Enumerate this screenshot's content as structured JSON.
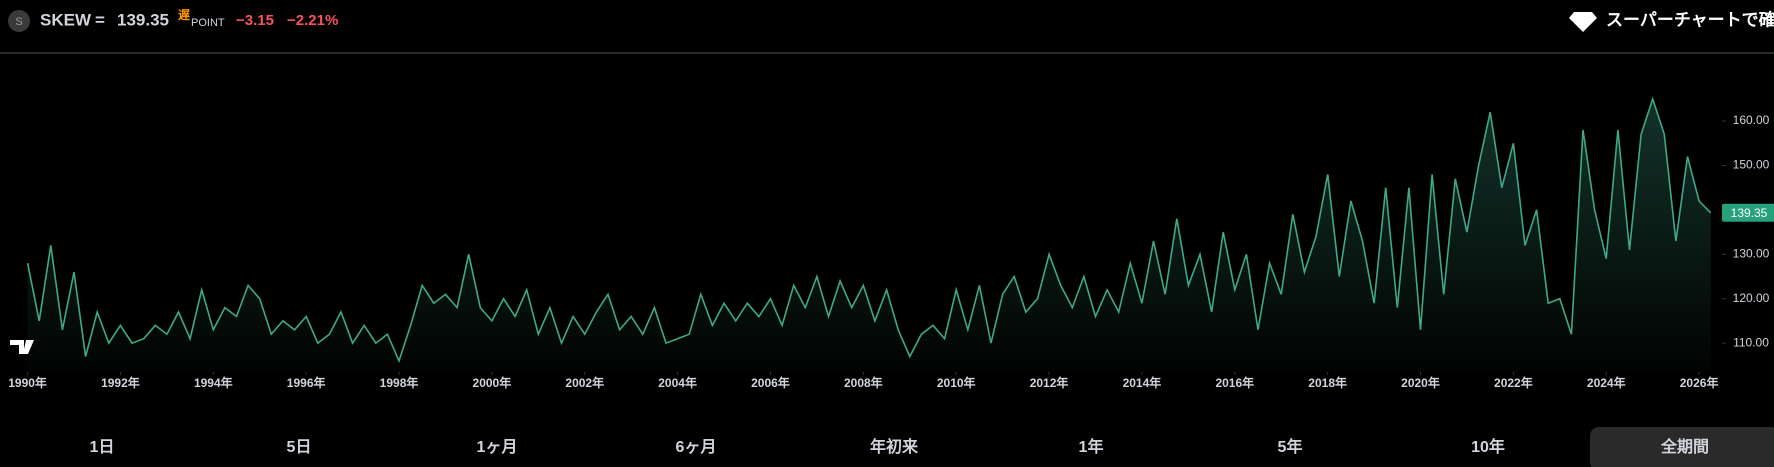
{
  "header": {
    "icon": "S",
    "symbol": "SKEW",
    "separator": "=",
    "price": "139.35",
    "delay": "遅",
    "unit": "POINT",
    "change": "−3.15",
    "change_pct": "−2.21%",
    "supercharts": "スーパーチャートで確認"
  },
  "ranges": [
    "1日",
    "5日",
    "1ヶ月",
    "6ヶ月",
    "年初来",
    "1年",
    "5年",
    "10年",
    "全期間"
  ],
  "chart_data": {
    "type": "line",
    "color": "#3fa88a",
    "area": true,
    "x": [
      1990,
      1990.25,
      1990.5,
      1990.75,
      1991,
      1991.25,
      1991.5,
      1991.75,
      1992,
      1992.25,
      1992.5,
      1992.75,
      1993,
      1993.25,
      1993.5,
      1993.75,
      1994,
      1994.25,
      1994.5,
      1994.75,
      1995,
      1995.25,
      1995.5,
      1995.75,
      1996,
      1996.25,
      1996.5,
      1996.75,
      1997,
      1997.25,
      1997.5,
      1997.75,
      1998,
      1998.25,
      1998.5,
      1998.75,
      1999,
      1999.25,
      1999.5,
      1999.75,
      2000,
      2000.25,
      2000.5,
      2000.75,
      2001,
      2001.25,
      2001.5,
      2001.75,
      2002,
      2002.25,
      2002.5,
      2002.75,
      2003,
      2003.25,
      2003.5,
      2003.75,
      2004,
      2004.25,
      2004.5,
      2004.75,
      2005,
      2005.25,
      2005.5,
      2005.75,
      2006,
      2006.25,
      2006.5,
      2006.75,
      2007,
      2007.25,
      2007.5,
      2007.75,
      2008,
      2008.25,
      2008.5,
      2008.75,
      2009,
      2009.25,
      2009.5,
      2009.75,
      2010,
      2010.25,
      2010.5,
      2010.75,
      2011,
      2011.25,
      2011.5,
      2011.75,
      2012,
      2012.25,
      2012.5,
      2012.75,
      2013,
      2013.25,
      2013.5,
      2013.75,
      2014,
      2014.25,
      2014.5,
      2014.75,
      2015,
      2015.25,
      2015.5,
      2015.75,
      2016,
      2016.25,
      2016.5,
      2016.75,
      2017,
      2017.25,
      2017.5,
      2017.75,
      2018,
      2018.25,
      2018.5,
      2018.75,
      2019,
      2019.25,
      2019.5,
      2019.75,
      2020,
      2020.25,
      2020.5,
      2020.75,
      2021,
      2021.25,
      2021.5,
      2021.75,
      2022,
      2022.25,
      2022.5,
      2022.75,
      2023,
      2023.25,
      2023.5,
      2023.75,
      2024,
      2024.25,
      2024.5,
      2024.75,
      2025,
      2025.25,
      2025.5,
      2025.75,
      2026,
      2026.25
    ],
    "values": [
      128,
      115,
      132,
      113,
      126,
      107,
      117,
      110,
      114,
      110,
      111,
      114,
      112,
      117,
      111,
      122,
      113,
      118,
      116,
      123,
      120,
      112,
      115,
      113,
      116,
      110,
      112,
      117,
      110,
      114,
      110,
      112,
      106,
      114,
      123,
      119,
      121,
      118,
      130,
      118,
      115,
      120,
      116,
      122,
      112,
      118,
      110,
      116,
      112,
      117,
      121,
      113,
      116,
      112,
      118,
      110,
      111,
      112,
      121,
      114,
      119,
      115,
      119,
      116,
      120,
      114,
      123,
      118,
      125,
      116,
      124,
      118,
      123,
      115,
      122,
      113,
      107,
      112,
      114,
      111,
      122,
      113,
      123,
      110,
      121,
      125,
      117,
      120,
      130,
      123,
      118,
      125,
      116,
      122,
      117,
      128,
      119,
      133,
      121,
      138,
      123,
      130,
      117,
      135,
      122,
      130,
      113,
      128,
      121,
      139,
      126,
      134,
      148,
      125,
      142,
      133,
      119,
      145,
      118,
      145,
      113,
      148,
      121,
      147,
      135,
      150,
      162,
      145,
      155,
      132,
      140,
      119,
      120,
      112,
      158,
      140,
      129,
      158,
      131,
      157,
      165,
      157,
      133,
      152,
      142,
      139.35
    ],
    "xlim": [
      1989.6,
      2026.45
    ],
    "xticks": [
      {
        "value": 1990,
        "label": "1990年"
      },
      {
        "value": 1992,
        "label": "1992年"
      },
      {
        "value": 1994,
        "label": "1994年"
      },
      {
        "value": 1996,
        "label": "1996年"
      },
      {
        "value": 1998,
        "label": "1998年"
      },
      {
        "value": 2000,
        "label": "2000年"
      },
      {
        "value": 2002,
        "label": "2002年"
      },
      {
        "value": 2004,
        "label": "2004年"
      },
      {
        "value": 2006,
        "label": "2006年"
      },
      {
        "value": 2008,
        "label": "2008年"
      },
      {
        "value": 2010,
        "label": "2010年"
      },
      {
        "value": 2012,
        "label": "2012年"
      },
      {
        "value": 2014,
        "label": "2014年"
      },
      {
        "value": 2016,
        "label": "2016年"
      },
      {
        "value": 2018,
        "label": "2018年"
      },
      {
        "value": 2020,
        "label": "2020年"
      },
      {
        "value": 2022,
        "label": "2022年"
      },
      {
        "value": 2024,
        "label": "2024年"
      },
      {
        "value": 2026,
        "label": "2026年"
      }
    ],
    "ylim": [
      103.5,
      176
    ],
    "yticks": [
      {
        "value": 110,
        "label": "110.00"
      },
      {
        "value": 120,
        "label": "120.00"
      },
      {
        "value": 130,
        "label": "130.00"
      },
      {
        "value": 140,
        "label": "140.00"
      },
      {
        "value": 150,
        "label": "150.00"
      },
      {
        "value": 160,
        "label": "160.00"
      }
    ]
  }
}
